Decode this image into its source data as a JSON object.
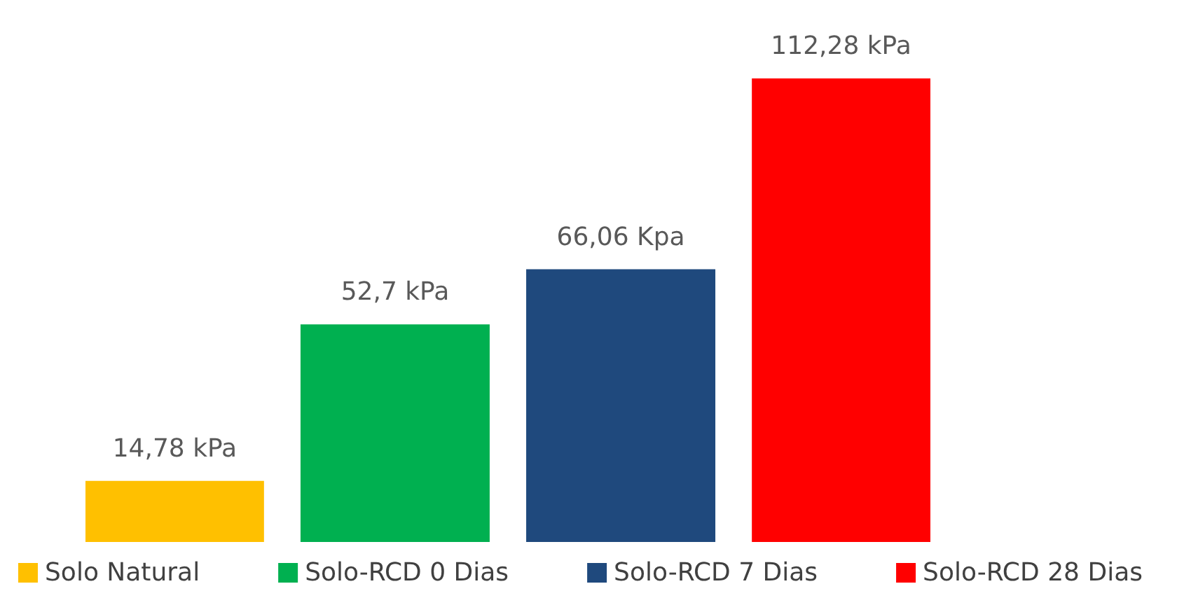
{
  "chart_data": {
    "type": "bar",
    "categories": [
      null
    ],
    "legend": "bottom",
    "series": [
      {
        "name": "Solo Natural",
        "color": "#ffc000",
        "values": [
          14.78
        ],
        "value_labels": [
          "14,78 kPa"
        ]
      },
      {
        "name": "Solo-RCD 0 Dias",
        "color": "#00b050",
        "values": [
          52.7
        ],
        "value_labels": [
          "52,7 kPa"
        ]
      },
      {
        "name": "Solo-RCD 7 Dias",
        "color": "#1f497d",
        "values": [
          66.06
        ],
        "value_labels": [
          "66,06 Kpa"
        ]
      },
      {
        "name": "Solo-RCD 28 Dias",
        "color": "#ff0000",
        "values": [
          112.28
        ],
        "value_labels": [
          "112,28 kPa"
        ]
      }
    ]
  }
}
